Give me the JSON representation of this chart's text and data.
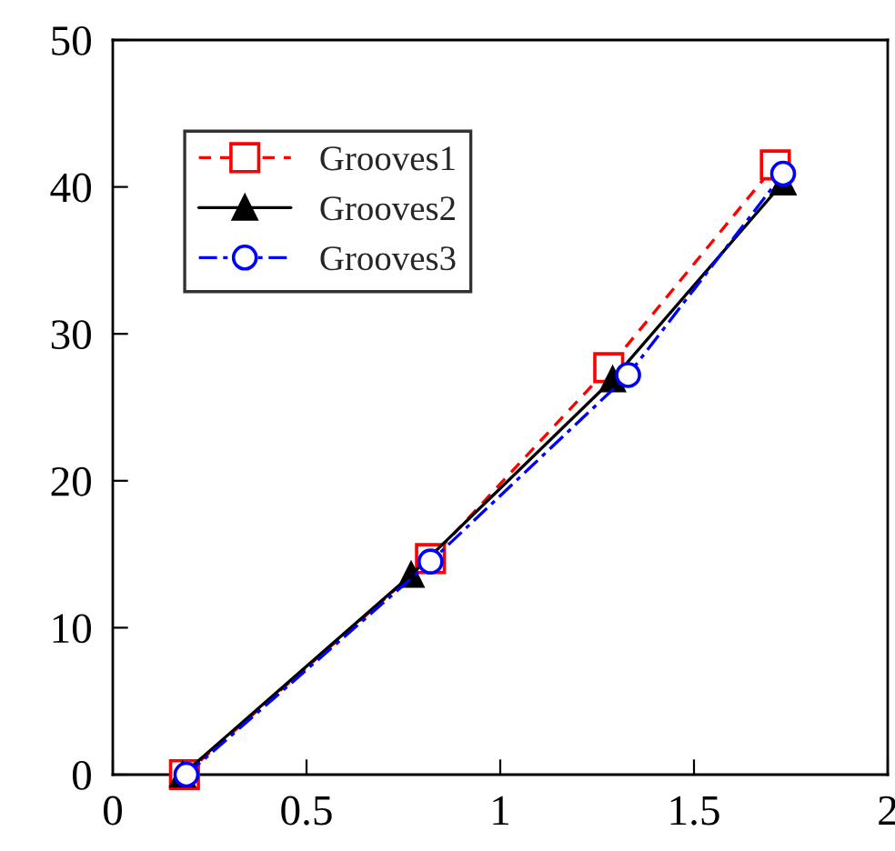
{
  "chart_data": {
    "type": "line",
    "xlim": [
      0,
      2
    ],
    "xticks": [
      0,
      0.5,
      1,
      1.5,
      2
    ],
    "ylim": [
      0,
      50
    ],
    "yticks": [
      0,
      10,
      20,
      30,
      40,
      50
    ],
    "grid": false,
    "legend": "top left",
    "series": [
      {
        "name": "Grooves1",
        "color": "#ff0000",
        "marker": "square",
        "line_style": "dashed",
        "x": [
          0.185,
          0.82,
          1.28,
          1.71
        ],
        "values": [
          0,
          14.7,
          27.7,
          41.5
        ]
      },
      {
        "name": "Grooves2",
        "color": "#000000",
        "marker": "triangle",
        "line_style": "solid",
        "x": [
          0.18,
          0.77,
          1.29,
          1.73
        ],
        "values": [
          0,
          13.6,
          26.9,
          40.3
        ]
      },
      {
        "name": "Grooves3",
        "color": "#0000ff",
        "marker": "circle",
        "line_style": "dashdot",
        "x": [
          0.19,
          0.82,
          1.33,
          1.73
        ],
        "values": [
          0,
          14.5,
          27.2,
          40.9
        ]
      }
    ]
  }
}
